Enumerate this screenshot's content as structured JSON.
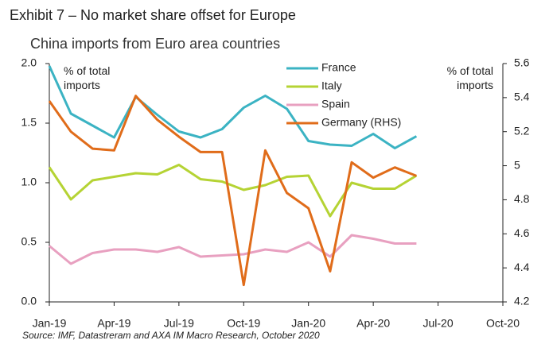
{
  "chart_data": {
    "type": "line",
    "exhibit": "Exhibit 7 – No market share offset for Europe",
    "title": "China imports from Euro area countries",
    "y_label": "% of total imports",
    "y2_label": "% of total imports",
    "source": "Source: IMF, Datastreram and AXA IM Macro Research, October 2020",
    "categories": [
      "Jan-19",
      null,
      null,
      "Apr-19",
      null,
      null,
      "Jul-19",
      null,
      null,
      "Oct-19",
      null,
      null,
      "Jan-20",
      null,
      null,
      "Apr-20",
      null,
      null,
      "Jul-20",
      null,
      null,
      "Oct-20"
    ],
    "ylim": [
      0,
      2
    ],
    "yticks": [
      {
        "value": 0,
        "label": "0.0"
      },
      0.5,
      {
        "value": 1,
        "label": "1.0"
      },
      1.5,
      {
        "value": 2,
        "label": "2.0"
      }
    ],
    "y2lim": [
      4.2,
      5.6
    ],
    "y2ticks": [
      4.2,
      4.4,
      4.6,
      4.8,
      5,
      5.2,
      5.4,
      5.6
    ],
    "grid": false,
    "legend": "top-right",
    "series": [
      {
        "name": "France",
        "color": "#3bb3c3",
        "values": [
          1.98,
          1.58,
          1.48,
          1.38,
          1.72,
          1.57,
          1.43,
          1.38,
          1.45,
          1.63,
          1.73,
          1.62,
          1.35,
          1.32,
          1.31,
          1.41,
          1.29,
          1.39,
          null,
          null,
          null,
          null
        ]
      },
      {
        "name": "Italy",
        "color": "#b5d334",
        "values": [
          1.13,
          0.86,
          1.02,
          1.05,
          1.08,
          1.07,
          1.15,
          1.03,
          1.01,
          0.94,
          0.98,
          1.05,
          1.06,
          0.72,
          1.0,
          0.95,
          0.95,
          1.06,
          null,
          null,
          null,
          null
        ]
      },
      {
        "name": "Spain",
        "color": "#e8a0c0",
        "values": [
          0.47,
          0.32,
          0.41,
          0.44,
          0.44,
          0.42,
          0.46,
          0.38,
          0.39,
          0.4,
          0.44,
          0.42,
          0.5,
          0.38,
          0.56,
          0.53,
          0.49,
          0.49,
          null,
          null,
          null,
          null
        ]
      },
      {
        "name": "Germany (RHS)",
        "color": "#e06c1a",
        "axis": "y2",
        "values": [
          5.38,
          5.2,
          5.1,
          5.09,
          5.41,
          5.27,
          5.17,
          5.08,
          5.08,
          4.3,
          5.09,
          4.84,
          4.75,
          4.38,
          5.02,
          4.93,
          4.99,
          4.94,
          null,
          null,
          null,
          null
        ]
      }
    ]
  }
}
